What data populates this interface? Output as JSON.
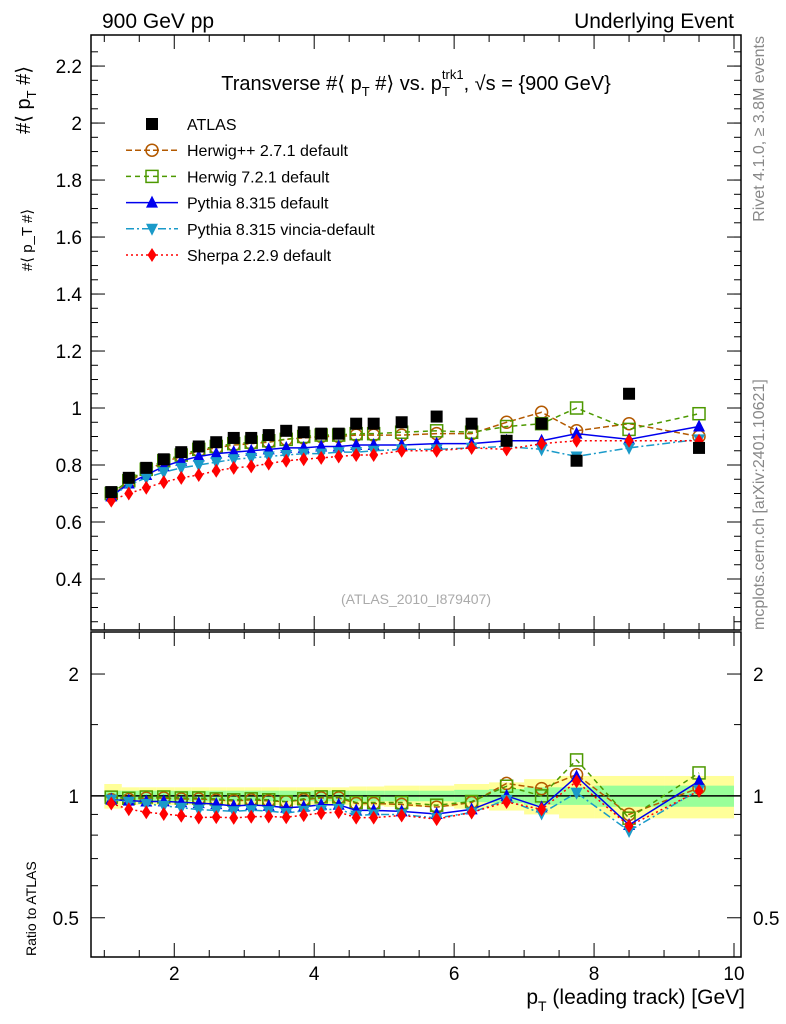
{
  "header": {
    "left": "900 GeV pp",
    "right": "Underlying Event"
  },
  "side_labels": {
    "rivet": "Rivet 4.1.0, ≥ 3.8M events",
    "mcplots": "mcplots.cern.ch [arXiv:2401.10621]"
  },
  "chart_data": {
    "type": "scatter",
    "title": "Transverse #⟨ p_T #⟩ vs. p_T^trk1, √s = {900 GeV}",
    "title_parts": {
      "a": "Transverse #⟨ p",
      "b": "T",
      "c": " #⟩ vs. p",
      "d": "T",
      "e": "trk1",
      "f": ", √s = {900 GeV}"
    },
    "ylabel": "#⟨ p_T #⟩",
    "ylabel_parts": {
      "a": "#⟨ p",
      "b": "T",
      "c": " #⟩"
    },
    "xlabel": "p_T (leading track) [GeV]",
    "xlabel_parts": {
      "a": "p",
      "b": "T",
      "c": " (leading track) [GeV]"
    },
    "ratio_ylabel": "Ratio to ATLAS",
    "watermark": "(ATLAS_2010_I879407)",
    "xlim": [
      0.81,
      10.1
    ],
    "ylim": [
      0.221,
      2.309
    ],
    "ratio_ylim": [
      0.4,
      2.54
    ],
    "xticks": [
      2,
      4,
      6,
      8,
      10
    ],
    "yticks": [
      0.4,
      0.6,
      0.8,
      1,
      1.2,
      1.4,
      1.6,
      1.8,
      2,
      2.2
    ],
    "ratio_yticks": [
      0.5,
      1,
      2
    ],
    "x": [
      1.1,
      1.35,
      1.6,
      1.85,
      2.1,
      2.35,
      2.6,
      2.85,
      3.1,
      3.35,
      3.6,
      3.85,
      4.1,
      4.35,
      4.6,
      4.85,
      5.25,
      5.75,
      6.25,
      6.75,
      7.25,
      7.75,
      8.5,
      9.5
    ],
    "xedges": [
      1.0,
      1.25,
      1.5,
      1.75,
      2.0,
      2.25,
      2.5,
      2.75,
      3.0,
      3.25,
      3.5,
      3.75,
      4.0,
      4.25,
      4.5,
      4.75,
      5.0,
      5.5,
      6.0,
      6.5,
      7.0,
      7.5,
      8.0,
      9.0,
      10.0
    ],
    "data_band_stat": [
      0.03,
      0.03,
      0.03,
      0.03,
      0.03,
      0.03,
      0.03,
      0.03,
      0.03,
      0.03,
      0.03,
      0.03,
      0.03,
      0.03,
      0.03,
      0.03,
      0.03,
      0.03,
      0.035,
      0.04,
      0.05,
      0.05,
      0.06,
      0.06
    ],
    "data_band_total": [
      0.07,
      0.05,
      0.05,
      0.05,
      0.05,
      0.05,
      0.05,
      0.05,
      0.05,
      0.05,
      0.05,
      0.05,
      0.05,
      0.05,
      0.055,
      0.055,
      0.06,
      0.06,
      0.07,
      0.08,
      0.1,
      0.12,
      0.12,
      0.12
    ],
    "series": [
      {
        "name": "ATLAS",
        "color": "#000000",
        "marker": "square-filled",
        "dash": "none",
        "values": [
          0.705,
          0.755,
          0.79,
          0.82,
          0.845,
          0.865,
          0.88,
          0.895,
          0.895,
          0.905,
          0.92,
          0.915,
          0.91,
          0.91,
          0.945,
          0.945,
          0.95,
          0.97,
          0.945,
          0.885,
          0.945,
          0.815,
          1.05,
          0.86
        ]
      },
      {
        "name": "Herwig++ 2.7.1 default",
        "color": "#b35900",
        "marker": "circle-open",
        "dash": "6,3",
        "values": [
          0.69,
          0.74,
          0.78,
          0.81,
          0.83,
          0.85,
          0.86,
          0.87,
          0.875,
          0.88,
          0.89,
          0.895,
          0.9,
          0.9,
          0.905,
          0.905,
          0.905,
          0.91,
          0.91,
          0.95,
          0.985,
          0.92,
          0.945,
          0.9
        ]
      },
      {
        "name": "Herwig 7.2.1 default",
        "color": "#4d9900",
        "marker": "square-open",
        "dash": "5,4",
        "values": [
          0.7,
          0.745,
          0.785,
          0.815,
          0.835,
          0.855,
          0.865,
          0.875,
          0.88,
          0.885,
          0.89,
          0.9,
          0.905,
          0.905,
          0.91,
          0.91,
          0.915,
          0.92,
          0.915,
          0.935,
          0.945,
          1.0,
          0.925,
          0.98
        ]
      },
      {
        "name": "Pythia 8.315 default",
        "color": "#0000ee",
        "marker": "triangle-up",
        "dash": "none",
        "values": [
          0.69,
          0.735,
          0.765,
          0.795,
          0.815,
          0.83,
          0.84,
          0.845,
          0.85,
          0.855,
          0.86,
          0.86,
          0.865,
          0.865,
          0.87,
          0.87,
          0.87,
          0.875,
          0.875,
          0.885,
          0.885,
          0.91,
          0.89,
          0.935
        ]
      },
      {
        "name": "Pythia 8.315 vincia-default",
        "color": "#1a9ac9",
        "marker": "triangle-down",
        "dash": "8,3,2,3",
        "values": [
          0.69,
          0.73,
          0.755,
          0.775,
          0.79,
          0.8,
          0.81,
          0.82,
          0.825,
          0.83,
          0.835,
          0.84,
          0.84,
          0.845,
          0.845,
          0.85,
          0.855,
          0.855,
          0.86,
          0.865,
          0.855,
          0.83,
          0.86,
          0.89
        ]
      },
      {
        "name": "Sherpa 2.2.9 default",
        "color": "#ff0000",
        "marker": "diamond",
        "dash": "2,3",
        "values": [
          0.675,
          0.7,
          0.72,
          0.74,
          0.755,
          0.765,
          0.78,
          0.79,
          0.795,
          0.805,
          0.815,
          0.82,
          0.825,
          0.83,
          0.835,
          0.835,
          0.85,
          0.85,
          0.86,
          0.855,
          0.875,
          0.885,
          0.885,
          0.885
        ]
      }
    ],
    "legend_position": "top-left",
    "band_colors": {
      "stat": "#99ff99",
      "total": "#ffff99"
    }
  }
}
